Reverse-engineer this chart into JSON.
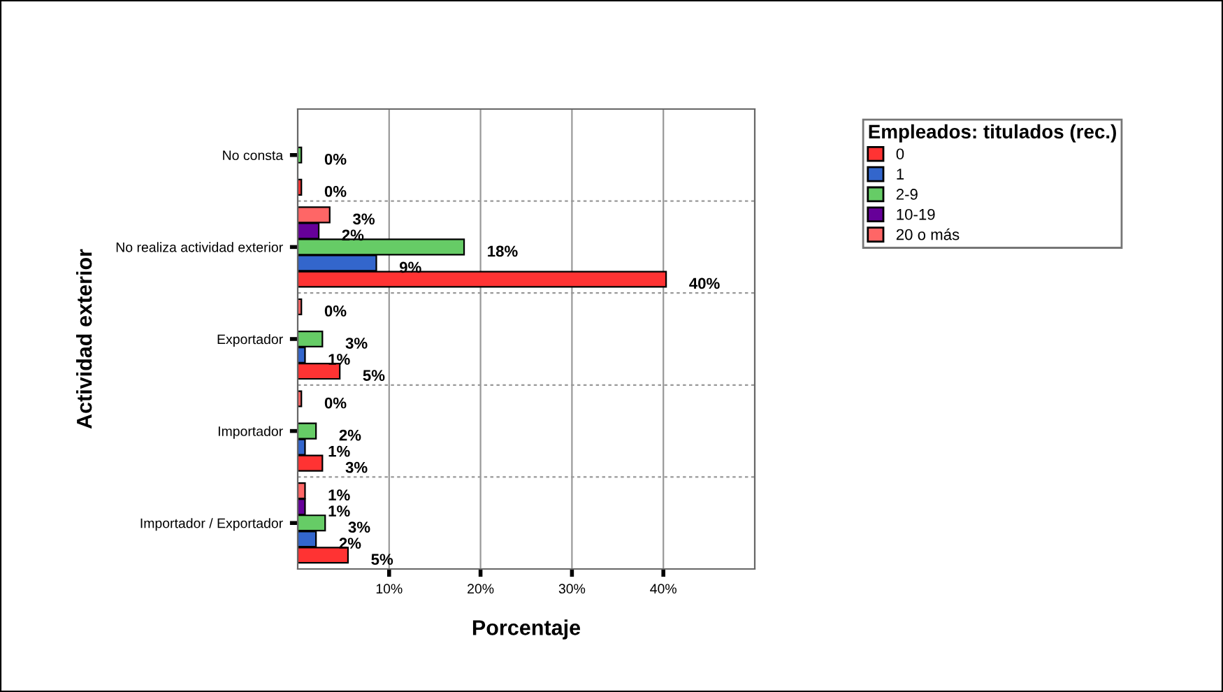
{
  "chart_data": {
    "type": "bar",
    "orientation": "horizontal",
    "xlabel": "Porcentaje",
    "ylabel": "Actividad exterior",
    "legend_title": "Empleados: titulados (rec.)",
    "legend": "top right",
    "grid": true,
    "categories": [
      "No consta",
      "No realiza actividad exterior",
      "Exportador",
      "Importador",
      "Importador / Exportador"
    ],
    "xlim": [
      0,
      50
    ],
    "xticks": [
      {
        "value": 10,
        "label": "10%"
      },
      {
        "value": 20,
        "label": "20%"
      },
      {
        "value": 30,
        "label": "30%"
      },
      {
        "value": 40,
        "label": "40%"
      }
    ],
    "series": [
      {
        "name": "0",
        "color": "#ff3333",
        "values": [
          0.4,
          40.3,
          4.6,
          2.7,
          5.5
        ],
        "value_labels": [
          "0%",
          "40%",
          "5%",
          "3%",
          "5%"
        ]
      },
      {
        "name": "1",
        "color": "#3366cc",
        "values": [
          null,
          8.6,
          0.8,
          0.8,
          2.0
        ],
        "value_labels": [
          null,
          "9%",
          "1%",
          "1%",
          "2%"
        ]
      },
      {
        "name": "2-9",
        "color": "#66cc66",
        "values": [
          0.4,
          18.2,
          2.7,
          2.0,
          3.0
        ],
        "value_labels": [
          "0%",
          "18%",
          "3%",
          "2%",
          "3%"
        ]
      },
      {
        "name": "10-19",
        "color": "#660099",
        "values": [
          null,
          2.3,
          null,
          null,
          0.8
        ],
        "value_labels": [
          null,
          "2%",
          null,
          null,
          "1%"
        ]
      },
      {
        "name": "20 o más",
        "color": "#ff6666",
        "values": [
          null,
          3.5,
          0.4,
          0.4,
          0.8
        ],
        "value_labels": [
          null,
          "3%",
          "0%",
          "0%",
          "1%"
        ]
      }
    ]
  }
}
